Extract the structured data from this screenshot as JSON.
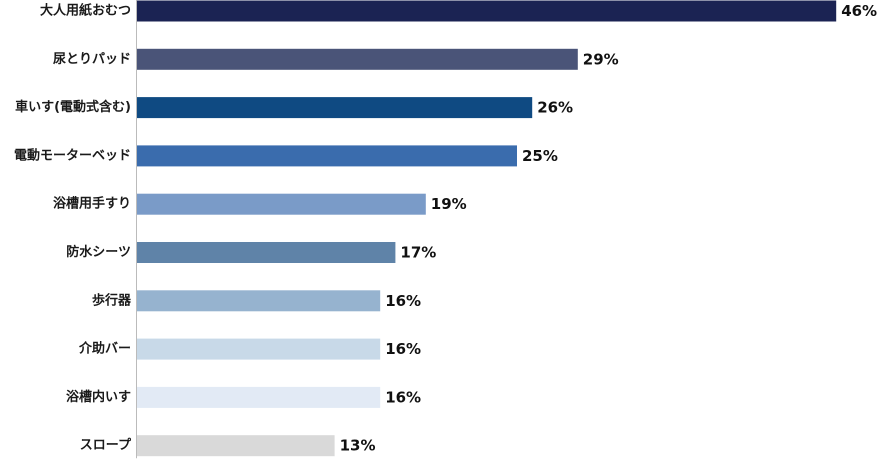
{
  "chart_data": {
    "type": "bar",
    "orientation": "horizontal",
    "categories": [
      "大人用紙おむつ",
      "尿とりパッド",
      "車いす(電動式含む)",
      "電動モーターベッド",
      "浴槽用手すり",
      "防水シーツ",
      "歩行器",
      "介助バー",
      "浴槽内いす",
      "スロープ"
    ],
    "values": [
      46,
      29,
      26,
      25,
      19,
      17,
      16,
      16,
      16,
      13
    ],
    "value_labels": [
      "46%",
      "29%",
      "26%",
      "25%",
      "19%",
      "17%",
      "16%",
      "16%",
      "16%",
      "13%"
    ],
    "unit": "%",
    "colors": [
      "#1b2353",
      "#4a5478",
      "#0f4a82",
      "#3a6cad",
      "#7a9bc8",
      "#5f83a8",
      "#96b3cf",
      "#c8d9e8",
      "#e2eaf5",
      "#d9d9d9"
    ],
    "grid": false,
    "legend": "none"
  }
}
